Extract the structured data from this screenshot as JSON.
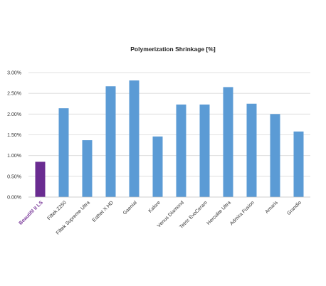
{
  "chart_data": {
    "type": "bar",
    "title": "Polymerization Shrinkage [%]",
    "xlabel": "",
    "ylabel": "",
    "ylim": [
      0,
      3.0
    ],
    "y_ticks": [
      "0.00%",
      "0.50%",
      "1.00%",
      "1.50%",
      "2.00%",
      "2.50%",
      "3.00%"
    ],
    "y_tick_values": [
      0,
      0.5,
      1.0,
      1.5,
      2.0,
      2.5,
      3.0
    ],
    "grid": true,
    "legend": "none",
    "categories": [
      "Beautifil II LS",
      "Filtek Z250",
      "Filtek Supreme Ultra",
      "Esthet X HD",
      "Gaenial",
      "Kalore",
      "Venus Diamond",
      "Tetric EvoCeram",
      "Herculite Ultra",
      "Admira Fusion",
      "Amaris",
      "Grandio"
    ],
    "values": [
      0.85,
      2.14,
      1.37,
      2.67,
      2.81,
      1.46,
      2.23,
      2.23,
      2.65,
      2.25,
      2.0,
      1.58
    ],
    "highlight_index": 0,
    "colors": {
      "highlight": "#6a2c91",
      "highlight_label": "#7a3a9a",
      "default": "#5b9bd5"
    }
  }
}
